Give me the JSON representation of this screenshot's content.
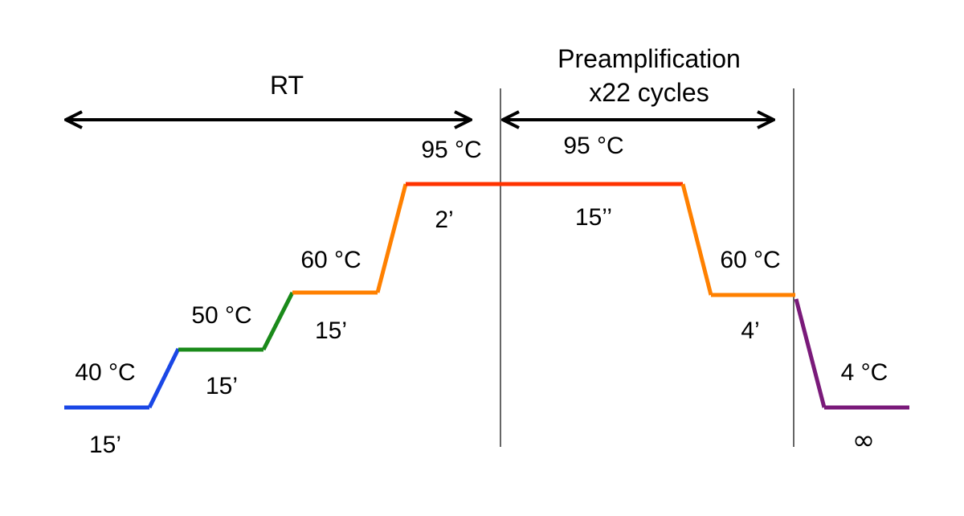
{
  "sections": {
    "rt": {
      "label": "RT"
    },
    "preamp": {
      "title": "Preamplification",
      "cycles": "x22 cycles"
    }
  },
  "steps": [
    {
      "temp": "40 °C",
      "time": "15’",
      "color": "#1a47e6"
    },
    {
      "temp": "50 °C",
      "time": "15’",
      "color": "#1a8a1a"
    },
    {
      "temp": "60 °C",
      "time": "15’",
      "color": "#ff8000"
    },
    {
      "temp": "95 °C",
      "time": "2’",
      "color": "#ff3300"
    },
    {
      "temp": "95 °C",
      "time": "15’’",
      "color": "#ff3300"
    },
    {
      "temp": "60 °C",
      "time": "4’",
      "color": "#ff8000"
    },
    {
      "temp": "4 °C",
      "time": "∞",
      "color": "#7a1a7a"
    }
  ]
}
